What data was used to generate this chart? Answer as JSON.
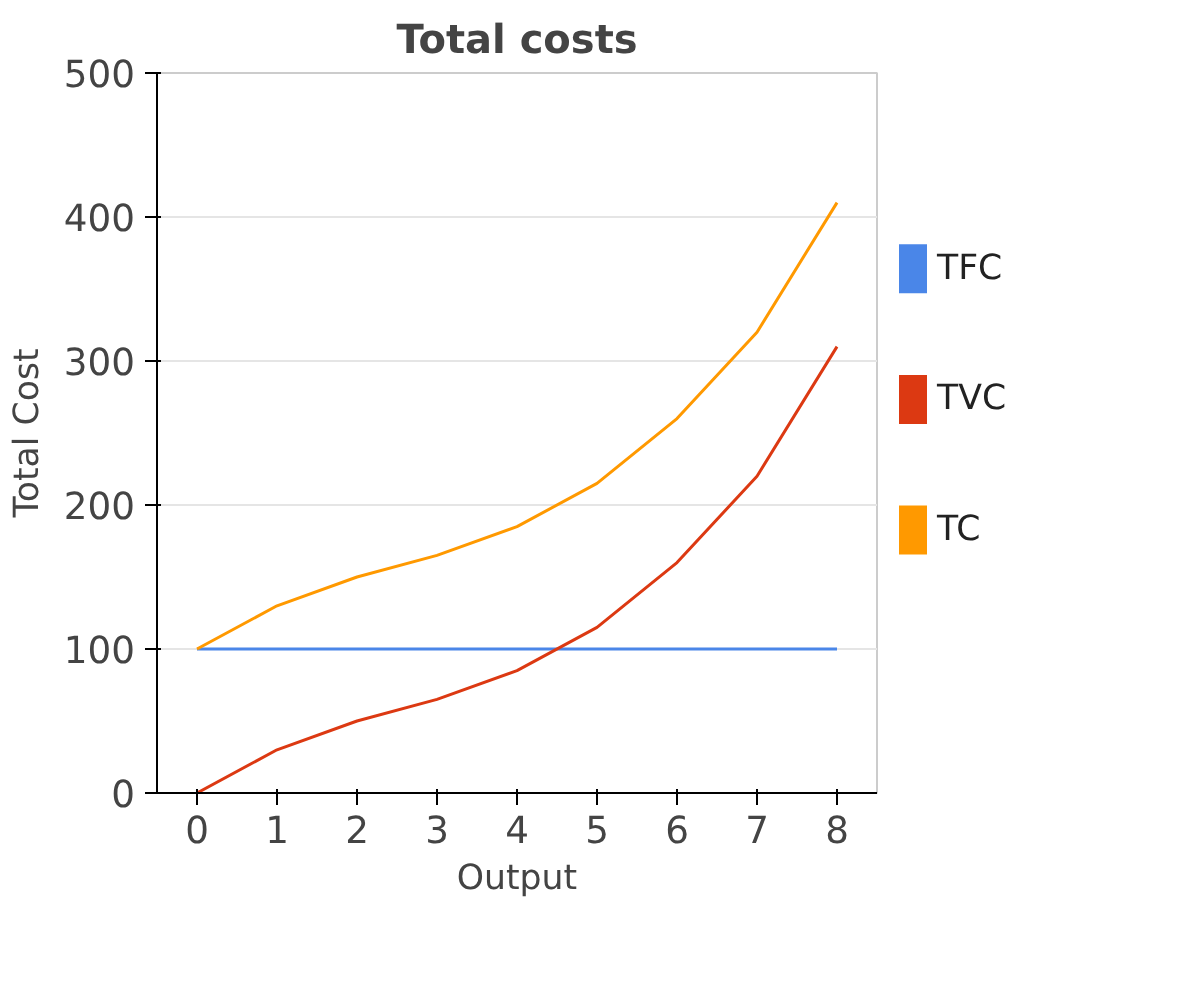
{
  "chart_data": {
    "type": "line",
    "title": "Total costs",
    "xlabel": "Output",
    "ylabel": "Total Cost",
    "x": [
      0,
      1,
      2,
      3,
      4,
      5,
      6,
      7,
      8
    ],
    "series": [
      {
        "name": "TFC",
        "color": "#4a86e8",
        "values": [
          100,
          100,
          100,
          100,
          100,
          100,
          100,
          100,
          100
        ]
      },
      {
        "name": "TVC",
        "color": "#dc3912",
        "values": [
          0,
          30,
          50,
          65,
          85,
          115,
          160,
          220,
          310
        ]
      },
      {
        "name": "TC",
        "color": "#ff9900",
        "values": [
          100,
          130,
          150,
          165,
          185,
          215,
          260,
          320,
          410
        ]
      }
    ],
    "xlim": [
      -0.5,
      8.5
    ],
    "xticks": [
      0,
      1,
      2,
      3,
      4,
      5,
      6,
      7,
      8
    ],
    "ylim": [
      0,
      500
    ],
    "yticks": [
      0,
      100,
      200,
      300,
      400,
      500
    ],
    "grid": "y",
    "legend": "right"
  }
}
